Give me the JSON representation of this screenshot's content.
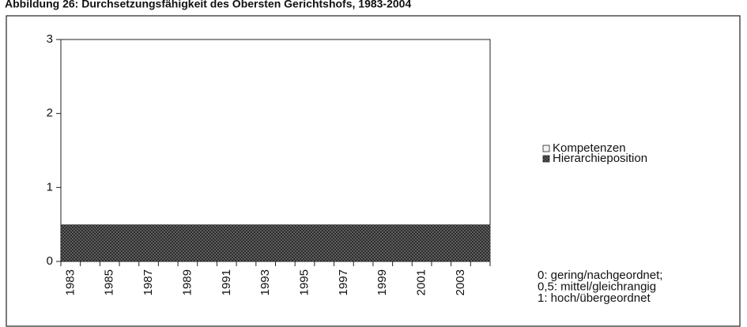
{
  "chart_data": {
    "type": "bar",
    "stacked": true,
    "title": "Abbildung 26: Durchsetzungsfähigkeit des Obersten Gerichtshofs, 1983-2004",
    "categories": [
      "1983",
      null,
      "1985",
      null,
      "1987",
      null,
      "1989",
      null,
      "1991",
      null,
      "1993",
      null,
      "1995",
      null,
      "1997",
      null,
      "1999",
      null,
      "2001",
      null,
      "2003",
      null
    ],
    "series": [
      {
        "name": "Kompetenzen",
        "color": "#e6e6e6",
        "values": [
          0,
          0,
          0,
          0,
          0,
          0,
          0,
          0,
          0,
          0,
          0,
          0,
          0,
          0,
          0,
          0,
          0,
          0,
          0,
          0,
          0,
          0
        ]
      },
      {
        "name": "Hierarchieposition",
        "color": "#6e6e6e",
        "values": [
          0.5,
          0.5,
          0.5,
          0.5,
          0.5,
          0.5,
          0.5,
          0.5,
          0.5,
          0.5,
          0.5,
          0.5,
          0.5,
          0.5,
          0.5,
          0.5,
          0.5,
          0.5,
          0.5,
          0.5,
          0.5,
          0.5
        ]
      }
    ],
    "ylim": [
      0,
      3
    ],
    "yticks": [
      0,
      1,
      2,
      3
    ],
    "grid": false,
    "legend": "right",
    "annotations": [
      "0: gering/nachgeordnet;",
      "0,5: mittel/gleichrangig",
      "1: hoch/übergeordnet"
    ]
  }
}
